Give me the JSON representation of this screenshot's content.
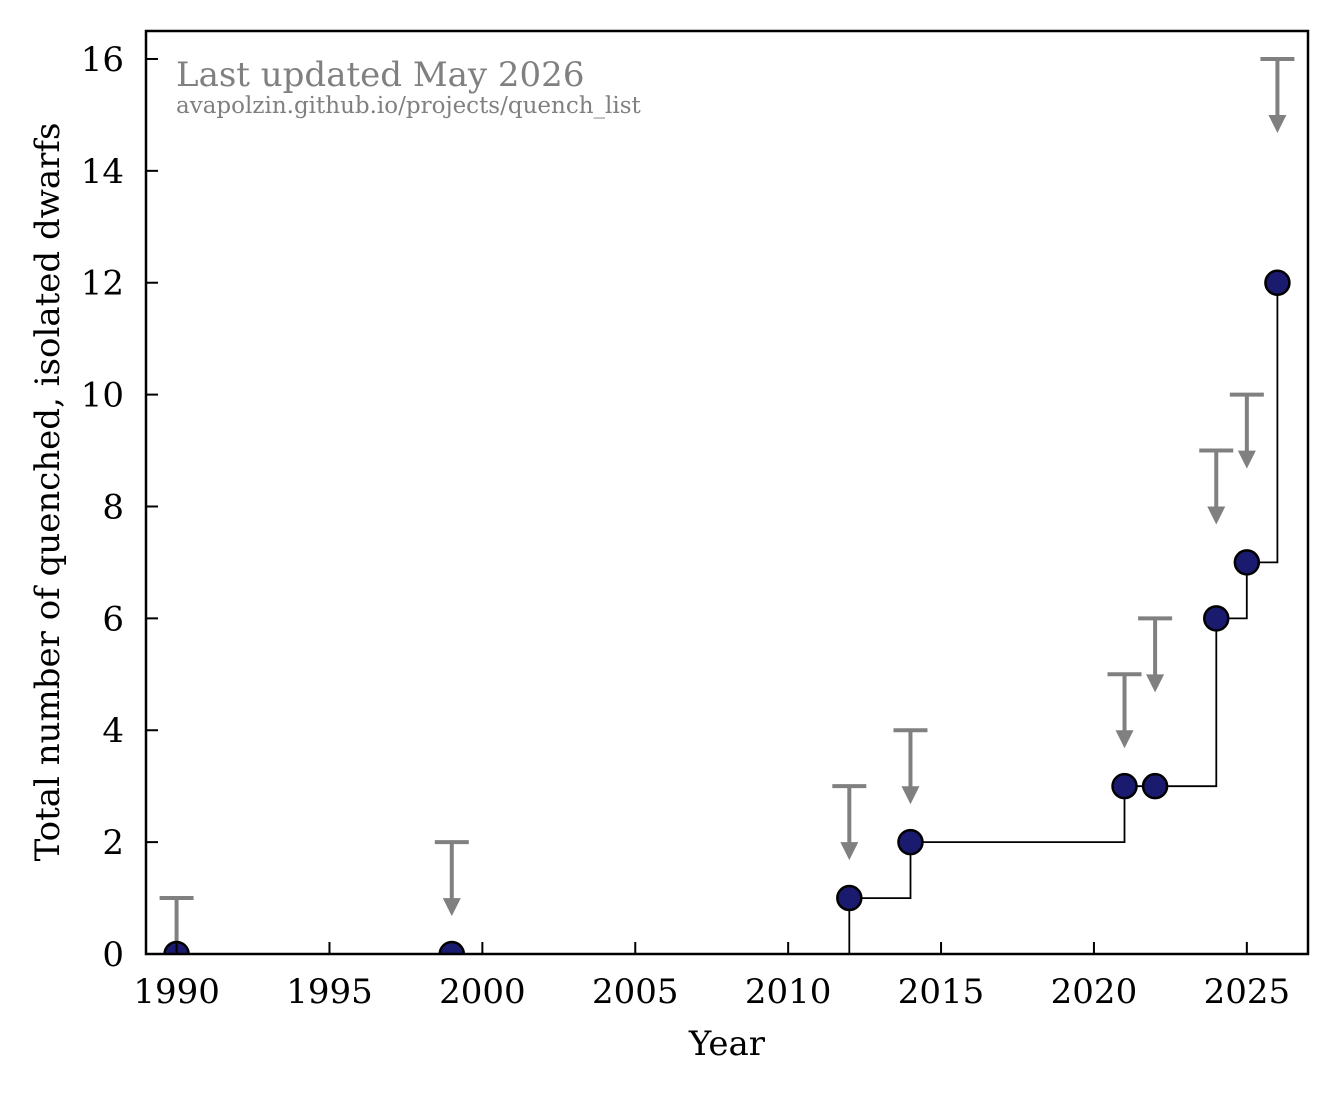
{
  "chart_data": {
    "type": "scatter",
    "title": "",
    "xlabel": "Year",
    "ylabel": "Total number of quenched, isolated dwarfs",
    "xlim": [
      1989,
      2027
    ],
    "ylim": [
      0,
      16.5
    ],
    "xticks": [
      1990,
      1995,
      2000,
      2005,
      2010,
      2015,
      2020,
      2025
    ],
    "yticks": [
      0,
      2,
      4,
      6,
      8,
      10,
      12,
      14,
      16
    ],
    "grid": false,
    "legend": "none",
    "colors": {
      "point_fill": "#1a1a6e",
      "point_edge": "#000000",
      "step_line": "#000000",
      "upper_limit": "#808080",
      "annotation": "#808080"
    },
    "points": [
      {
        "x": 1990,
        "y": 0
      },
      {
        "x": 1999,
        "y": 0
      },
      {
        "x": 2012,
        "y": 1
      },
      {
        "x": 2014,
        "y": 2
      },
      {
        "x": 2021,
        "y": 3
      },
      {
        "x": 2022,
        "y": 3
      },
      {
        "x": 2024,
        "y": 6
      },
      {
        "x": 2025,
        "y": 7
      },
      {
        "x": 2026,
        "y": 12
      }
    ],
    "step_line": [
      {
        "x": 2012,
        "y": 0
      },
      {
        "x": 2012,
        "y": 1
      },
      {
        "x": 2014,
        "y": 1
      },
      {
        "x": 2014,
        "y": 2
      },
      {
        "x": 2021,
        "y": 2
      },
      {
        "x": 2021,
        "y": 3
      },
      {
        "x": 2024,
        "y": 3
      },
      {
        "x": 2024,
        "y": 6
      },
      {
        "x": 2025,
        "y": 6
      },
      {
        "x": 2025,
        "y": 7
      },
      {
        "x": 2026,
        "y": 7
      },
      {
        "x": 2026,
        "y": 12
      }
    ],
    "upper_limits": [
      {
        "x": 1990,
        "y": 1
      },
      {
        "x": 1999,
        "y": 2
      },
      {
        "x": 2012,
        "y": 3
      },
      {
        "x": 2014,
        "y": 4
      },
      {
        "x": 2021,
        "y": 5
      },
      {
        "x": 2022,
        "y": 6
      },
      {
        "x": 2024,
        "y": 9
      },
      {
        "x": 2025,
        "y": 10
      },
      {
        "x": 2026,
        "y": 16
      }
    ],
    "annotations": [
      "Last updated May 2026",
      "avapolzin.github.io/projects/quench_list"
    ]
  }
}
